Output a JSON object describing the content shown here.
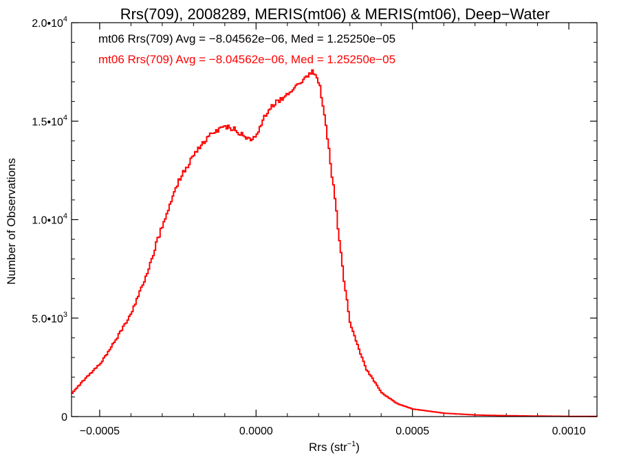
{
  "chart_data": {
    "type": "histogram",
    "title": "Rrs(709), 2008289, MERIS(mt06) & MERIS(mt06), Deep−Water",
    "xlabel_main": "Rrs (str",
    "xlabel_sup": "−1",
    "xlabel_tail": ")",
    "ylabel": "Number of Observations",
    "xlim": [
      -0.00059,
      0.00109
    ],
    "ylim": [
      0,
      20000
    ],
    "x_ticks": [
      {
        "value": -0.0005,
        "label": "−0.0005"
      },
      {
        "value": 0.0,
        "label": "0.0000"
      },
      {
        "value": 0.0005,
        "label": "0.0005"
      },
      {
        "value": 0.001,
        "label": "0.0010"
      }
    ],
    "y_ticks": [
      {
        "value": 0,
        "mant": "0",
        "exp": ""
      },
      {
        "value": 5000,
        "mant": "5.0•10",
        "exp": "3"
      },
      {
        "value": 10000,
        "mant": "1.0•10",
        "exp": "4"
      },
      {
        "value": 15000,
        "mant": "1.5•10",
        "exp": "4"
      },
      {
        "value": 20000,
        "mant": "2.0•10",
        "exp": "4"
      }
    ],
    "annotations": [
      {
        "text": "mt06 Rrs(709) Avg = −8.04562e−06, Med = 1.25250e−05",
        "color": "#000000"
      },
      {
        "text": "mt06 Rrs(709) Avg = −8.04562e−06, Med = 1.25250e−05",
        "color": "#ff0000"
      }
    ],
    "series": [
      {
        "color": "#ff0000",
        "points": [
          [
            -0.00059,
            1200
          ],
          [
            -0.00055,
            1900
          ],
          [
            -0.0005,
            2700
          ],
          [
            -0.00045,
            3900
          ],
          [
            -0.0004,
            5300
          ],
          [
            -0.00035,
            7300
          ],
          [
            -0.0003,
            9800
          ],
          [
            -0.00025,
            12000
          ],
          [
            -0.0002,
            13300
          ],
          [
            -0.00015,
            14300
          ],
          [
            -0.0001,
            14700
          ],
          [
            -7e-05,
            14600
          ],
          [
            -3e-05,
            14100
          ],
          [
            0.0,
            14200
          ],
          [
            3e-05,
            15400
          ],
          [
            6e-05,
            15900
          ],
          [
            0.0001,
            16400
          ],
          [
            0.00013,
            16900
          ],
          [
            0.00016,
            17300
          ],
          [
            0.00018,
            17500
          ],
          [
            0.0002,
            17000
          ],
          [
            0.00022,
            15000
          ],
          [
            0.00025,
            11000
          ],
          [
            0.00028,
            6800
          ],
          [
            0.0003,
            4600
          ],
          [
            0.00035,
            2400
          ],
          [
            0.0004,
            1200
          ],
          [
            0.00045,
            650
          ],
          [
            0.0005,
            380
          ],
          [
            0.0006,
            170
          ],
          [
            0.0007,
            80
          ],
          [
            0.0008,
            45
          ],
          [
            0.0009,
            25
          ],
          [
            0.001,
            12
          ],
          [
            0.00109,
            5
          ]
        ]
      }
    ]
  }
}
